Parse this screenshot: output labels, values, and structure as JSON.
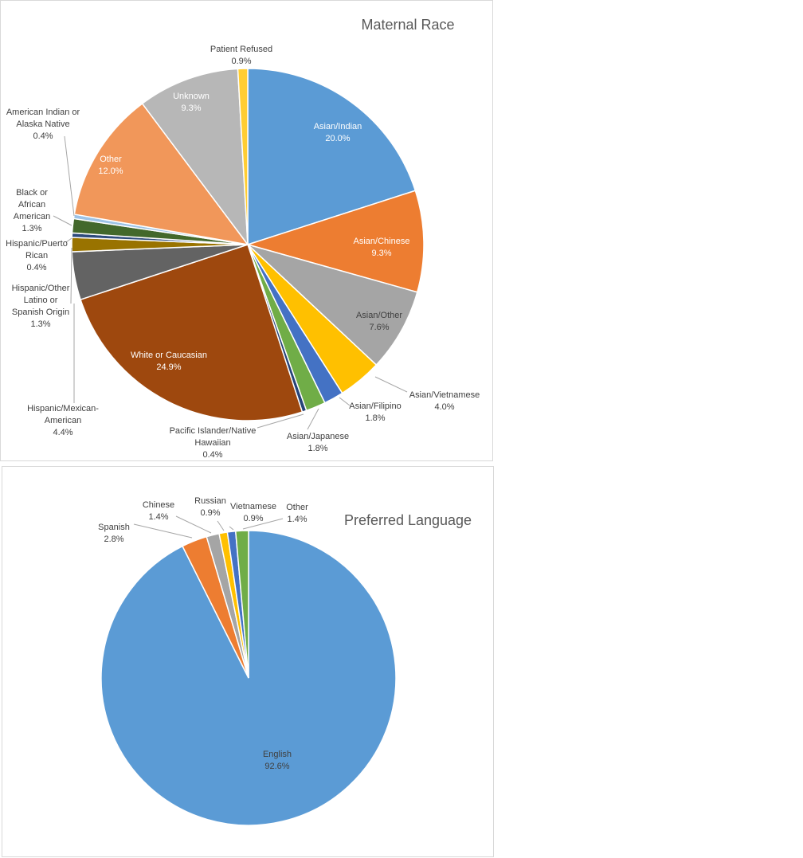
{
  "chart_data": [
    {
      "type": "pie",
      "title": "Maternal Race",
      "slices": [
        {
          "label": [
            "Asian/Indian"
          ],
          "value_label": "20.0%",
          "value": 20.0,
          "color": "#5B9BD5"
        },
        {
          "label": [
            "Asian/Chinese"
          ],
          "value_label": "9.3%",
          "value": 9.3,
          "color": "#ED7D31"
        },
        {
          "label": [
            "Asian/Other"
          ],
          "value_label": "7.6%",
          "value": 7.6,
          "color": "#A5A5A5"
        },
        {
          "label": [
            "Asian/Vietnamese"
          ],
          "value_label": "4.0%",
          "value": 4.0,
          "color": "#FFC000"
        },
        {
          "label": [
            "Asian/Filipino"
          ],
          "value_label": "1.8%",
          "value": 1.8,
          "color": "#4472C4"
        },
        {
          "label": [
            "Asian/Japanese"
          ],
          "value_label": "1.8%",
          "value": 1.8,
          "color": "#70AD47"
        },
        {
          "label": [
            "Pacific Islander/Native",
            "Hawaiian"
          ],
          "value_label": "0.4%",
          "value": 0.4,
          "color": "#264478"
        },
        {
          "label": [
            "White or Caucasian"
          ],
          "value_label": "24.9%",
          "value": 24.9,
          "color": "#9E480E"
        },
        {
          "label": [
            "Hispanic/Mexican-",
            "American"
          ],
          "value_label": "4.4%",
          "value": 4.4,
          "color": "#636363"
        },
        {
          "label": [
            "Hispanic/Other",
            "Latino or",
            "Spanish Origin"
          ],
          "value_label": "1.3%",
          "value": 1.3,
          "color": "#997300"
        },
        {
          "label": [
            "Hispanic/Puerto",
            "Rican"
          ],
          "value_label": "0.4%",
          "value": 0.4,
          "color": "#2E4B7C"
        },
        {
          "label": [
            "Black or",
            "African",
            "American"
          ],
          "value_label": "1.3%",
          "value": 1.3,
          "color": "#43682B"
        },
        {
          "label": [
            "American Indian or",
            "Alaska Native"
          ],
          "value_label": "0.4%",
          "value": 0.4,
          "color": "#9DC3E6"
        },
        {
          "label": [
            "Other"
          ],
          "value_label": "12.0%",
          "value": 12.0,
          "color": "#F1975A"
        },
        {
          "label": [
            "Unknown"
          ],
          "value_label": "9.3%",
          "value": 9.3,
          "color": "#B7B7B7"
        },
        {
          "label": [
            "Patient Refused"
          ],
          "value_label": "0.9%",
          "value": 0.9,
          "color": "#FFCD33"
        }
      ]
    },
    {
      "type": "pie",
      "title": "Preferred Language",
      "slices": [
        {
          "label": [
            "English"
          ],
          "value_label": "92.6%",
          "value": 92.6,
          "color": "#5B9BD5"
        },
        {
          "label": [
            "Spanish"
          ],
          "value_label": "2.8%",
          "value": 2.8,
          "color": "#ED7D31"
        },
        {
          "label": [
            "Chinese"
          ],
          "value_label": "1.4%",
          "value": 1.4,
          "color": "#A5A5A5"
        },
        {
          "label": [
            "Russian"
          ],
          "value_label": "0.9%",
          "value": 0.9,
          "color": "#FFC000"
        },
        {
          "label": [
            "Vietnamese"
          ],
          "value_label": "0.9%",
          "value": 0.9,
          "color": "#4472C4"
        },
        {
          "label": [
            "Other"
          ],
          "value_label": "1.4%",
          "value": 1.4,
          "color": "#70AD47"
        }
      ]
    }
  ]
}
